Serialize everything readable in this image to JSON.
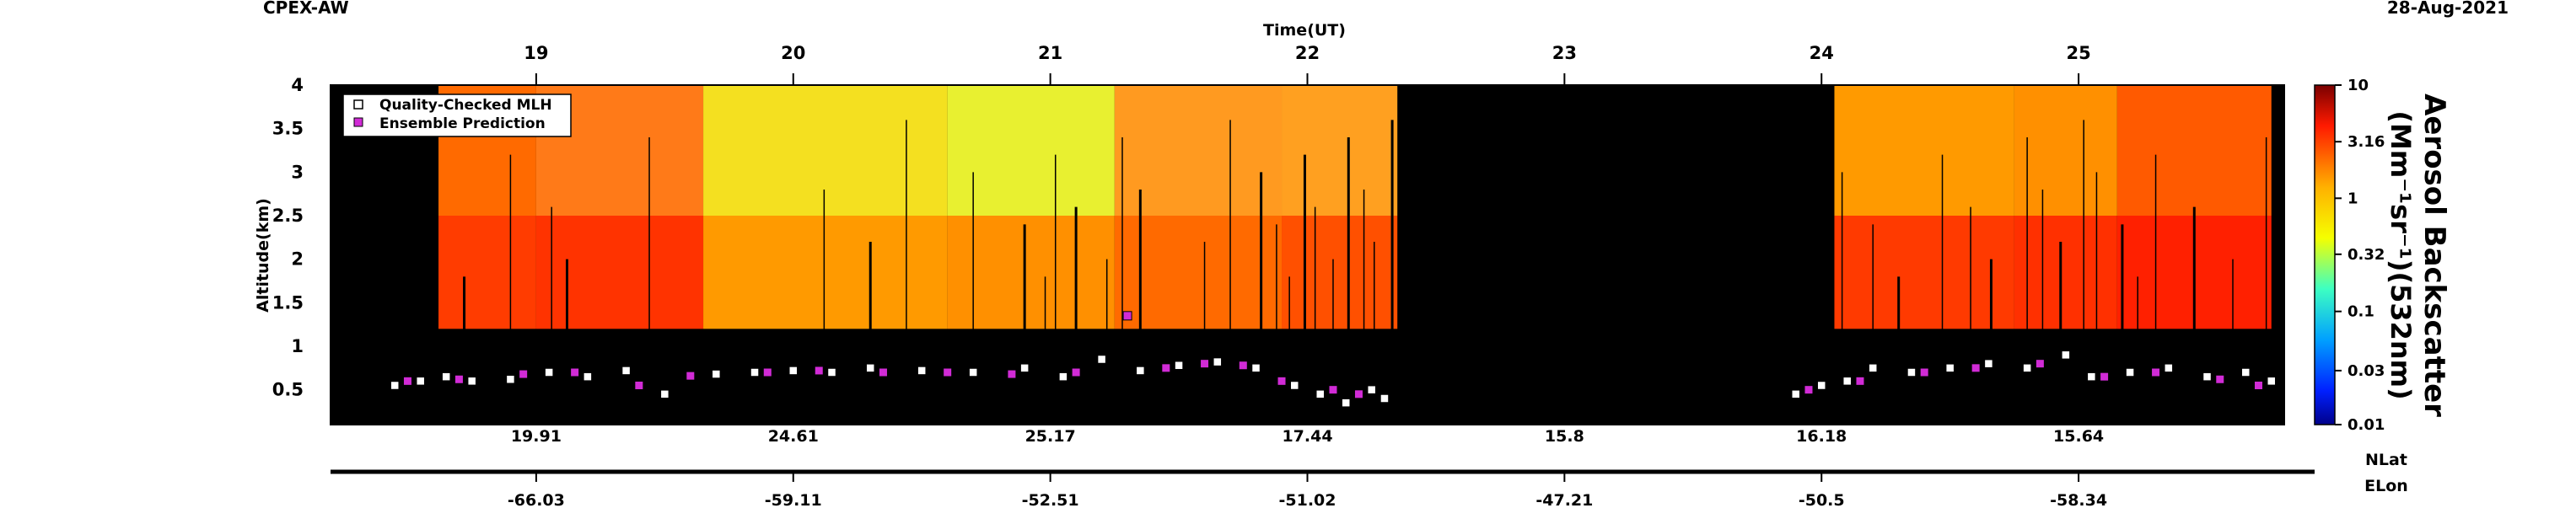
{
  "chart_data": {
    "type": "heatmap",
    "title_left": "CPEX-AW",
    "title_right": "28-Aug-2021",
    "top_axis_label": "Time(UT)",
    "top_ticks": [
      "19",
      "20",
      "21",
      "22",
      "23",
      "24",
      "25"
    ],
    "time_range_ut": [
      18.2,
      25.8
    ],
    "ylabel": "Altitude(km)",
    "ylim": [
      0.1,
      4.0
    ],
    "y_ticks": [
      "0.5",
      "1",
      "1.5",
      "2",
      "2.5",
      "3",
      "3.5",
      "4"
    ],
    "colorbar": {
      "label": "Aerosol Backscatter (Mm-1sr-1)(532nm)",
      "label_main": "Aerosol Backscatter",
      "label_units": "(Mm⁻¹sr⁻¹)(532nm)",
      "scale": "log",
      "ticks": [
        "10",
        "3.16",
        "1",
        "0.32",
        "0.1",
        "0.03",
        "0.01"
      ],
      "range": [
        0.01,
        10
      ]
    },
    "legend": {
      "placement": "top-left",
      "entries": [
        {
          "name": "Quality-Checked MLH",
          "marker": "white-square"
        },
        {
          "name": "Ensemble Prediction",
          "marker": "magenta-square"
        }
      ]
    },
    "nlat_label": "NLat",
    "elon_label": "ELon",
    "nlat_ticks": [
      "19.91",
      "24.61",
      "25.17",
      "17.44",
      "15.8",
      "16.18",
      "15.64"
    ],
    "elon_ticks": [
      "-66.03",
      "-59.11",
      "-52.51",
      "-51.02",
      "-47.21",
      "-50.5",
      "-58.34"
    ],
    "mlh_qc_series": {
      "name": "Quality-Checked MLH",
      "x_ut": [
        18.45,
        18.55,
        18.65,
        18.75,
        18.9,
        19.05,
        19.2,
        19.35,
        19.5,
        19.7,
        19.85,
        20.0,
        20.15,
        20.3,
        20.5,
        20.7,
        20.9,
        21.05,
        21.2,
        21.35,
        21.5,
        21.65,
        21.8,
        21.95,
        22.05,
        22.15,
        22.25,
        22.3,
        23.9,
        24.0,
        24.1,
        24.2,
        24.35,
        24.5,
        24.65,
        24.8,
        24.95,
        25.05,
        25.2,
        25.35,
        25.5,
        25.65,
        25.75
      ],
      "y_km": [
        0.55,
        0.6,
        0.65,
        0.6,
        0.62,
        0.7,
        0.65,
        0.72,
        0.45,
        0.68,
        0.7,
        0.72,
        0.7,
        0.75,
        0.72,
        0.7,
        0.75,
        0.65,
        0.85,
        0.72,
        0.78,
        0.82,
        0.75,
        0.55,
        0.45,
        0.35,
        0.5,
        0.4,
        0.45,
        0.55,
        0.6,
        0.75,
        0.7,
        0.75,
        0.8,
        0.75,
        0.9,
        0.65,
        0.7,
        0.75,
        0.65,
        0.7,
        0.6
      ]
    },
    "ensemble_series": {
      "name": "Ensemble Prediction",
      "x_ut": [
        18.5,
        18.7,
        18.95,
        19.15,
        19.4,
        19.6,
        19.9,
        20.1,
        20.35,
        20.6,
        20.85,
        21.1,
        21.3,
        21.45,
        21.6,
        21.75,
        21.9,
        22.1,
        22.2,
        23.95,
        24.15,
        24.4,
        24.6,
        24.85,
        25.1,
        25.3,
        25.55,
        25.7
      ],
      "y_km": [
        0.6,
        0.62,
        0.68,
        0.7,
        0.55,
        0.66,
        0.7,
        0.72,
        0.7,
        0.7,
        0.68,
        0.7,
        1.35,
        0.75,
        0.8,
        0.78,
        0.6,
        0.5,
        0.45,
        0.5,
        0.6,
        0.7,
        0.75,
        0.8,
        0.65,
        0.7,
        0.62,
        0.55
      ]
    }
  }
}
